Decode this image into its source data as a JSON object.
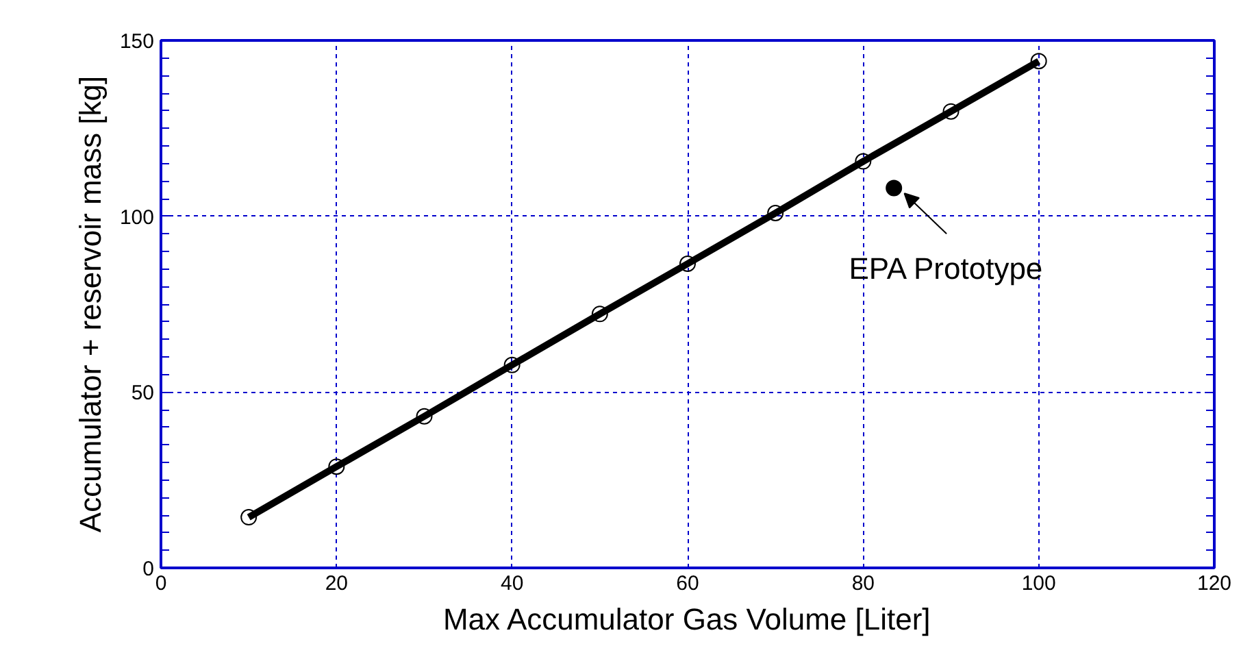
{
  "chart_data": {
    "type": "line",
    "xlabel": "Max Accumulator Gas Volume [Liter]",
    "ylabel": "Accumulator + reservoir mass [kg]",
    "xlim": [
      0,
      120
    ],
    "xticks": [
      0,
      20,
      40,
      60,
      80,
      100,
      120
    ],
    "ylim": [
      0,
      150
    ],
    "yticks": [
      0,
      50,
      100,
      150
    ],
    "grid": true,
    "series": [
      {
        "marker": "circle",
        "color": "#000000",
        "x": [
          10,
          20,
          30,
          40,
          50,
          60,
          70,
          80,
          90,
          100
        ],
        "values": [
          14.4,
          28.8,
          43.1,
          57.7,
          72.2,
          86.5,
          100.9,
          115.6,
          129.8,
          144.1
        ]
      },
      {
        "type": "scatter",
        "color": "#000000",
        "x": [
          83.5
        ],
        "values": [
          108
        ]
      }
    ],
    "annotations": [
      {
        "text": "EPA Prototype",
        "x": 83.5,
        "y": 108
      }
    ]
  }
}
